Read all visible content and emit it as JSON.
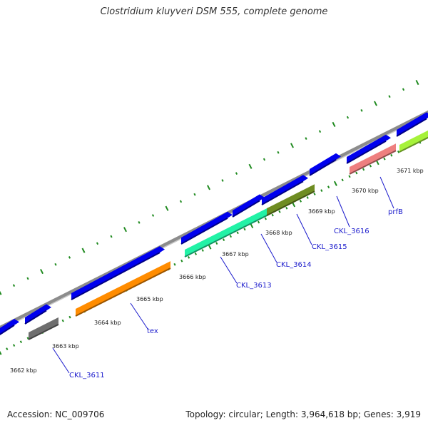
{
  "title": "Clostridium kluyveri DSM 555, complete genome",
  "footer": {
    "accession": "Accession: NC_009706",
    "stats": "Topology: circular; Length: 3,964,618 bp; Genes: 3,919"
  },
  "colors": {
    "backbone": "#8c8c8c",
    "cds": "#0000ee",
    "tick": "#1f8a1f",
    "label": "#1a1acc",
    "highlight_gray": "#6e6e6e",
    "highlight_orange": "#ff8c00",
    "highlight_aqua": "#22f2a6",
    "highlight_olive": "#6e8c22",
    "highlight_salmon": "#ee7f7f",
    "highlight_lime": "#a6f23a"
  },
  "scale_ticks": [
    "3662 kbp",
    "3663 kbp",
    "3664 kbp",
    "3665 kbp",
    "3666 kbp",
    "3667 kbp",
    "3668 kbp",
    "3669 kbp",
    "3670 kbp",
    "3671 kbp"
  ],
  "genes": [
    {
      "name": "CKL_3611",
      "color": "highlight_gray"
    },
    {
      "name": "tex",
      "color": "highlight_orange"
    },
    {
      "name": "CKL_3613",
      "color": "highlight_aqua"
    },
    {
      "name": "CKL_3614",
      "color": "highlight_aqua"
    },
    {
      "name": "CKL_3615",
      "color": "highlight_olive"
    },
    {
      "name": "CKL_3616",
      "color": "highlight_salmon"
    },
    {
      "name": "prfB",
      "color": "highlight_lime"
    }
  ]
}
